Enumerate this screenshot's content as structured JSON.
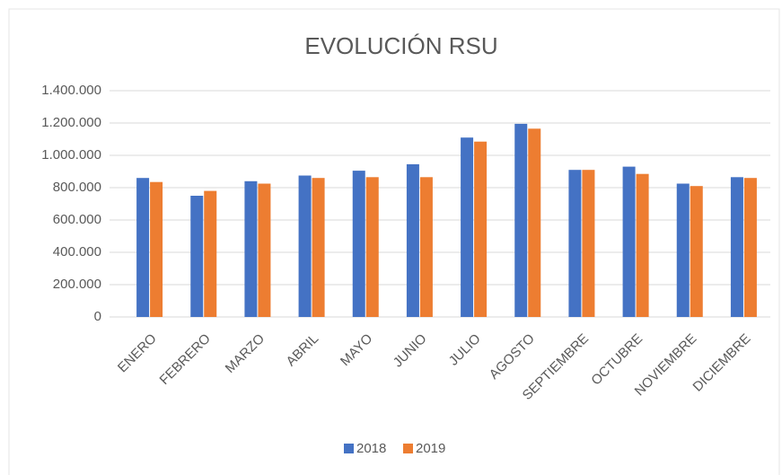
{
  "chart_data": {
    "type": "bar",
    "title": "EVOLUCIÓN RSU",
    "categories": [
      "ENERO",
      "FEBRERO",
      "MARZO",
      "ABRIL",
      "MAYO",
      "JUNIO",
      "JULIO",
      "AGOSTO",
      "SEPTIEMBRE",
      "OCTUBRE",
      "NOVIEMBRE",
      "DICIEMBRE"
    ],
    "series": [
      {
        "name": "2018",
        "color": "#4472c4",
        "values": [
          860000,
          750000,
          840000,
          875000,
          905000,
          945000,
          1110000,
          1195000,
          910000,
          930000,
          825000,
          865000
        ]
      },
      {
        "name": "2019",
        "color": "#ed7d31",
        "values": [
          835000,
          780000,
          825000,
          860000,
          865000,
          865000,
          1085000,
          1165000,
          910000,
          885000,
          810000,
          860000
        ]
      }
    ],
    "ylim": [
      0,
      1400000
    ],
    "yticks": [
      0,
      {
        "value": 200000,
        "label": "200.000"
      },
      {
        "value": 400000,
        "label": "400.000"
      },
      {
        "value": 600000,
        "label": "600.000"
      },
      {
        "value": 800000,
        "label": "800.000"
      },
      {
        "value": 1000000,
        "label": "1.000.000"
      },
      {
        "value": 1200000,
        "label": "1.200.000"
      },
      {
        "value": 1400000,
        "label": "1.400.000"
      }
    ],
    "grid": true,
    "legend": "bottom"
  }
}
